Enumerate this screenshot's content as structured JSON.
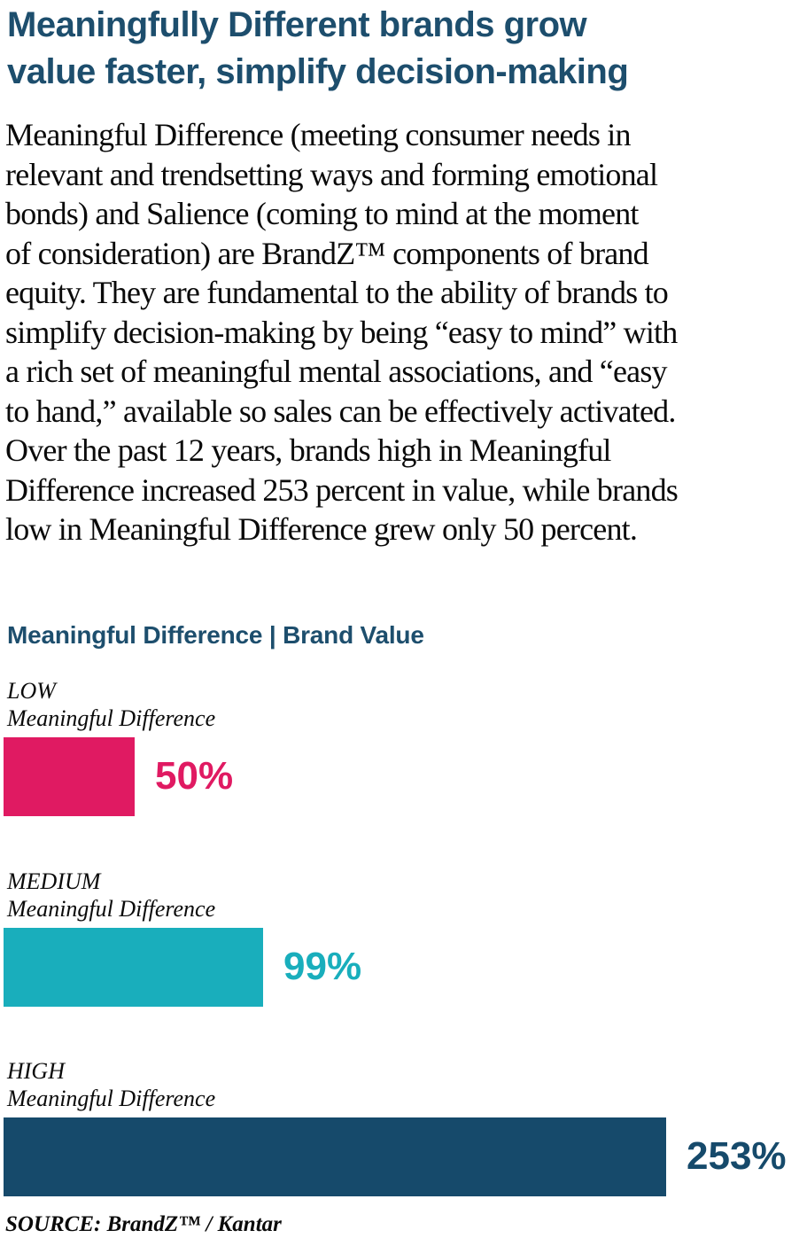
{
  "page": {
    "title_lines": [
      "Meaningfully Different brands grow",
      "value faster, simplify decision-making"
    ],
    "body_lines": [
      "Meaningful Difference (meeting consumer needs in",
      "relevant and trendsetting ways and forming emotional",
      "bonds) and Salience (coming to mind at the moment",
      "of consideration) are BrandZ™ components of brand",
      "equity. They are fundamental to the ability of brands to",
      "simplify decision-making by being “easy to mind” with",
      "a rich set of meaningful mental associations, and “easy",
      "to hand,” available so sales can be effectively activated.",
      "Over the past 12 years, brands high in Meaningful",
      "Difference increased 253 percent in value, while brands",
      "low in Meaningful Difference grew only 50 percent."
    ],
    "source": "SOURCE: BrandZ™ / Kantar"
  },
  "chart": {
    "title": "Meaningful Difference | Brand Value",
    "bars": [
      {
        "level": "LOW",
        "dimension": "Meaningful Difference",
        "value": 50,
        "value_label": "50%",
        "color": "#e01a62"
      },
      {
        "level": "MEDIUM",
        "dimension": "Meaningful Difference",
        "value": 99,
        "value_label": "99%",
        "color": "#19aebc"
      },
      {
        "level": "HIGH",
        "dimension": "Meaningful Difference",
        "value": 253,
        "value_label": "253%",
        "color": "#164a6b"
      }
    ]
  },
  "chart_data": {
    "type": "bar",
    "orientation": "horizontal",
    "title": "Meaningful Difference | Brand Value",
    "categories": [
      "LOW Meaningful Difference",
      "MEDIUM Meaningful Difference",
      "HIGH Meaningful Difference"
    ],
    "values": [
      50,
      99,
      253
    ],
    "value_labels": [
      "50%",
      "99%",
      "253%"
    ],
    "xlim": [
      0,
      253
    ],
    "bar_colors": [
      "#e01a62",
      "#19aebc",
      "#164a6b"
    ],
    "grid": false,
    "legend": false,
    "source": "SOURCE: BrandZ™ / Kantar"
  },
  "colors": {
    "heading": "#1d4e6d",
    "body_text": "#0a0a0a",
    "pink": "#e01a62",
    "teal": "#19aebc",
    "navy": "#164a6b"
  }
}
